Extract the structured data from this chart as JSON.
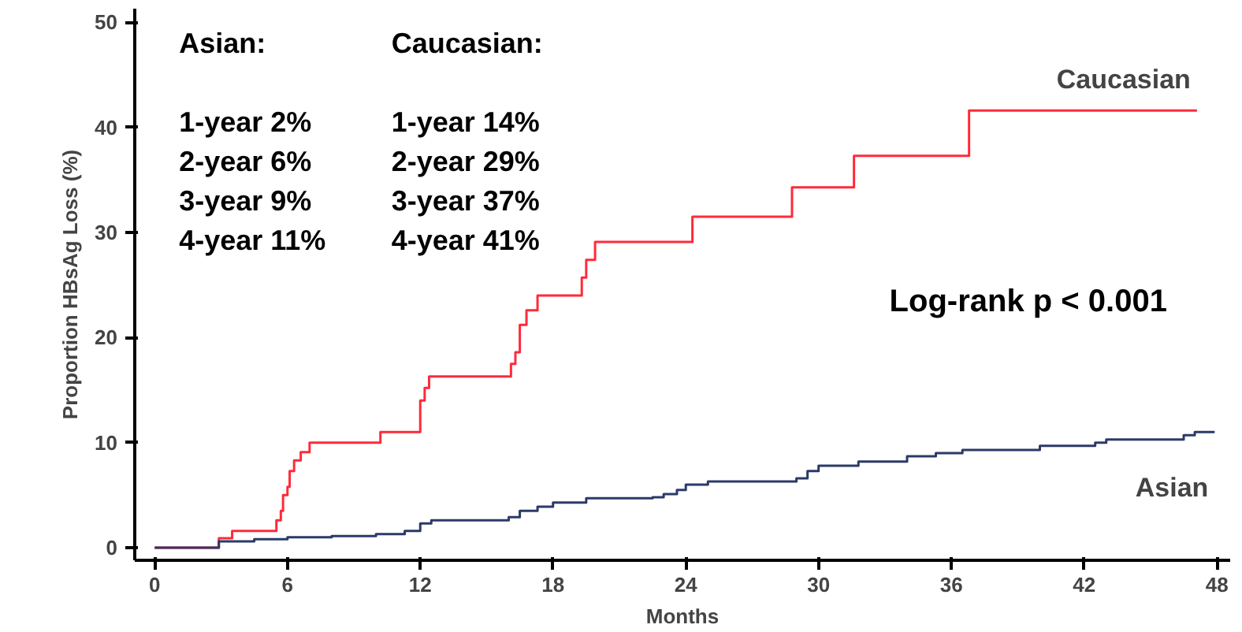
{
  "chart_data": {
    "type": "step",
    "xlabel": "Months",
    "ylabel": "Proportion HBsAg Loss (%)",
    "xlim": [
      -0.9,
      48.6
    ],
    "ylim": [
      -1.2,
      51.3
    ],
    "xticks": [
      0,
      6,
      12,
      18,
      24,
      30,
      36,
      42,
      48
    ],
    "yticks": [
      0,
      10,
      20,
      30,
      40,
      50
    ],
    "grid": false,
    "series": [
      {
        "name": "Caucasian",
        "color": "#ff2a3a",
        "x": [
          0,
          2.9,
          3.5,
          5.5,
          5.7,
          5.8,
          6.0,
          6.1,
          6.3,
          6.6,
          7.0,
          10.2,
          12.0,
          12.2,
          12.4,
          16.1,
          16.3,
          16.5,
          16.8,
          17.3,
          19.3,
          19.5,
          19.9,
          24.3,
          28.8,
          31.6,
          36.8,
          47.1
        ],
        "values": [
          0,
          0.9,
          1.6,
          2.6,
          3.5,
          5.0,
          5.8,
          7.3,
          8.3,
          9.1,
          10.0,
          11.0,
          14.0,
          15.2,
          16.3,
          17.5,
          18.6,
          21.2,
          22.6,
          24.0,
          25.7,
          27.4,
          29.1,
          31.5,
          34.3,
          37.3,
          41.6,
          41.6
        ]
      },
      {
        "name": "Asian",
        "color": "#2b3a67",
        "x": [
          0,
          2.9,
          4.5,
          6,
          8,
          10,
          11.3,
          12,
          12.5,
          16,
          16.5,
          17.3,
          18,
          19.5,
          22.5,
          23,
          23.6,
          24,
          25,
          29,
          29.5,
          30,
          31.8,
          34,
          35.3,
          36.5,
          40,
          42.5,
          43,
          46.5,
          47,
          47.9
        ],
        "values": [
          0,
          0.6,
          0.8,
          1.0,
          1.1,
          1.3,
          1.6,
          2.3,
          2.6,
          2.9,
          3.5,
          3.9,
          4.3,
          4.7,
          4.8,
          5.1,
          5.5,
          6.0,
          6.3,
          6.6,
          7.3,
          7.8,
          8.2,
          8.7,
          9.0,
          9.3,
          9.7,
          10.0,
          10.3,
          10.7,
          11.0,
          11.0
        ]
      }
    ],
    "annotations": [
      "Asian:",
      "Caucasian:",
      "1-year 2%",
      "2-year 6%",
      "3-year 9%",
      "4-year 11%",
      "1-year 14%",
      "2-year 29%",
      "3-year 37%",
      "4-year 41%",
      "Log-rank p < 0.001"
    ]
  }
}
